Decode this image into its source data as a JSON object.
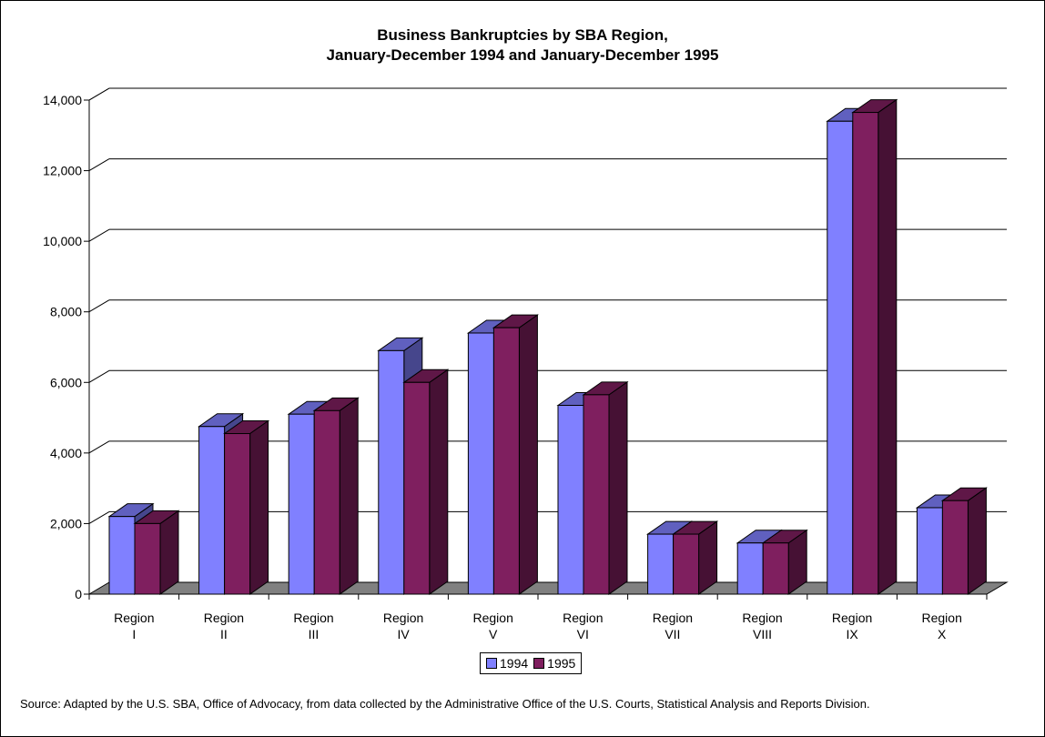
{
  "chart_data": {
    "type": "bar",
    "title": [
      "Business Bankruptcies by SBA Region,",
      "January-December 1994 and January-December 1995"
    ],
    "categories": [
      [
        "Region",
        "I"
      ],
      [
        "Region",
        "II"
      ],
      [
        "Region",
        "III"
      ],
      [
        "Region",
        "IV"
      ],
      [
        "Region",
        "V"
      ],
      [
        "Region",
        "VI"
      ],
      [
        "Region",
        "VII"
      ],
      [
        "Region",
        "VIII"
      ],
      [
        "Region",
        "IX"
      ],
      [
        "Region",
        "X"
      ]
    ],
    "series": [
      {
        "name": "1994",
        "values": [
          2200,
          4750,
          5100,
          6900,
          7400,
          5350,
          1700,
          1450,
          13400,
          2450
        ],
        "color": "#8080ff"
      },
      {
        "name": "1995",
        "values": [
          2000,
          4550,
          5200,
          6000,
          7550,
          5650,
          1700,
          1450,
          13650,
          2650
        ],
        "color": "#7f1f5f"
      }
    ],
    "ylim": [
      0,
      14000
    ],
    "yticks": [
      "0",
      "2,000",
      "4,000",
      "6,000",
      "8,000",
      "10,000",
      "12,000",
      "14,000"
    ],
    "grid": true,
    "legend_position": "bottom"
  },
  "source_note": "Source:  Adapted by the U.S. SBA, Office of Advocacy, from data collected by the Administrative Office of the U.S. Courts, Statistical Analysis and Reports Division."
}
